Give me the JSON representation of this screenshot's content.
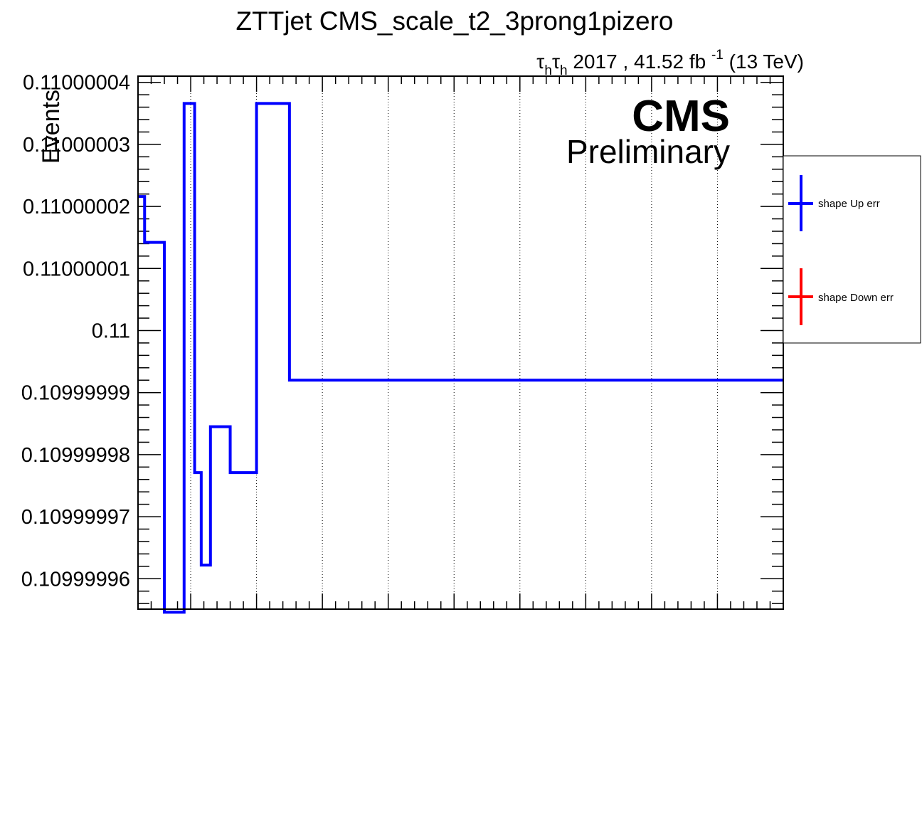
{
  "chart_data": {
    "type": "line",
    "title": "ZTTjet CMS_scale_t2_3prong1pizero",
    "lumi_label": {
      "channel_symbol": "τ",
      "channel_subscript": "h",
      "year": "2017",
      "lumi": ", 41.52 fb",
      "lumi_exponent": "-1",
      "energy": "(13 TeV)"
    },
    "cms_label": "CMS",
    "cms_sublabel": "Preliminary",
    "xlabel": "",
    "ylabel": "Events",
    "xlim": [
      0,
      49
    ],
    "ylim": [
      0.1099999551,
      0.110000041
    ],
    "yticks": [
      {
        "value": 0.10999996,
        "label": "0.10999996"
      },
      {
        "value": 0.10999997,
        "label": "0.10999997"
      },
      {
        "value": 0.10999998,
        "label": "0.10999998"
      },
      {
        "value": 0.10999999,
        "label": "0.10999999"
      },
      {
        "value": 0.11,
        "label": "0.11"
      },
      {
        "value": 0.11000001,
        "label": "0.11000001"
      },
      {
        "value": 0.11000002,
        "label": "0.11000002"
      },
      {
        "value": 0.11000003,
        "label": "0.11000003"
      },
      {
        "value": 0.11000004,
        "label": "0.11000004"
      }
    ],
    "xgrid": [
      4,
      9,
      14,
      19,
      24,
      29,
      34,
      39,
      44
    ],
    "grid": {
      "x": true,
      "y": false
    },
    "legend_position": "right",
    "series": [
      {
        "name": "shape Up err",
        "color": "#0000ff",
        "x_edges": [
          0,
          0.5,
          2,
          3.5,
          3.5,
          4,
          4.5,
          5,
          5.5,
          6,
          7,
          7.5,
          8,
          9,
          10,
          11,
          12,
          13,
          14,
          15,
          16,
          17,
          18,
          19,
          20,
          21,
          22,
          23,
          24,
          25,
          26,
          27,
          28,
          29,
          30,
          31,
          32,
          33,
          34,
          35,
          36,
          37,
          38,
          39,
          40,
          41,
          42,
          43,
          44,
          45,
          46,
          47,
          48,
          49
        ],
        "steps": [
          {
            "x0": 0,
            "x1": 0.5,
            "y": 0.1100000216
          },
          {
            "x0": 0.5,
            "x1": 2,
            "y": 0.1100000142
          },
          {
            "x0": 2,
            "x1": 3.5,
            "y": 0.1099999546
          },
          {
            "x0": 3.5,
            "x1": 4.3,
            "y": 0.1100000366
          },
          {
            "x0": 4.3,
            "x1": 4.8,
            "y": 0.1099999771
          },
          {
            "x0": 4.8,
            "x1": 5.5,
            "y": 0.1099999622
          },
          {
            "x0": 5.5,
            "x1": 7,
            "y": 0.1099999845
          },
          {
            "x0": 7,
            "x1": 9,
            "y": 0.1099999771
          },
          {
            "x0": 9,
            "x1": 11.5,
            "y": 0.1100000366
          },
          {
            "x0": 11.5,
            "x1": 49,
            "y": 0.109999992
          }
        ]
      },
      {
        "name": "shape Down err",
        "color": "#ff0000",
        "steps": []
      }
    ]
  }
}
